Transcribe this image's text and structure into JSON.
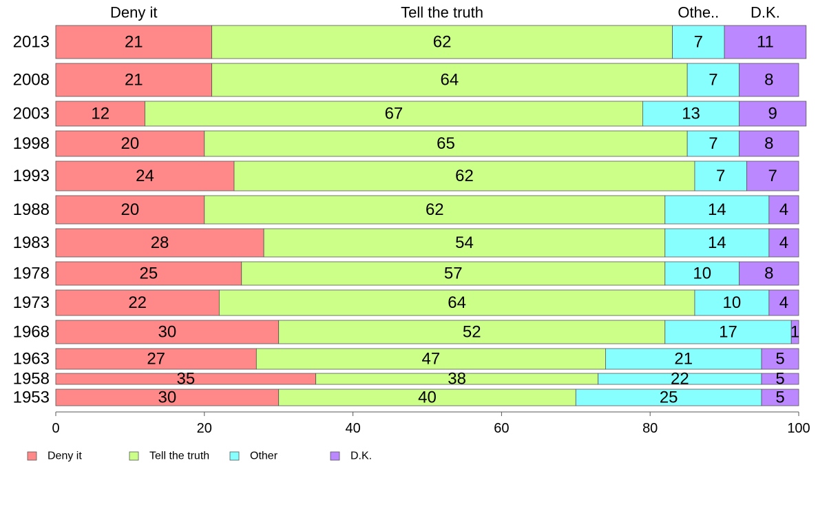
{
  "chart_data": {
    "type": "bar",
    "orientation": "horizontal",
    "stacked": true,
    "categories": [
      "2013",
      "2008",
      "2003",
      "1998",
      "1993",
      "1988",
      "1983",
      "1978",
      "1973",
      "1968",
      "1963",
      "1958",
      "1953"
    ],
    "series": [
      {
        "name": "Deny it",
        "color": "#ff8888",
        "values": [
          21,
          21,
          12,
          20,
          24,
          20,
          28,
          25,
          22,
          30,
          27,
          35,
          30
        ]
      },
      {
        "name": "Tell the truth",
        "color": "#ccff88",
        "values": [
          62,
          64,
          67,
          65,
          62,
          62,
          54,
          57,
          64,
          52,
          47,
          38,
          40
        ]
      },
      {
        "name": "Other",
        "color": "#88ffff",
        "values": [
          7,
          7,
          13,
          7,
          7,
          14,
          14,
          10,
          10,
          17,
          21,
          22,
          25
        ]
      },
      {
        "name": "D.K.",
        "color": "#bb88ff",
        "values": [
          11,
          8,
          9,
          8,
          7,
          4,
          4,
          8,
          4,
          1,
          5,
          5,
          5
        ]
      }
    ],
    "column_headers": [
      "Deny it",
      "Tell the truth",
      "Othe..",
      "D.K."
    ],
    "x_ticks": [
      "0",
      "20",
      "40",
      "60",
      "80",
      "100"
    ],
    "xlim": [
      0,
      100
    ],
    "grid": false,
    "legend_placement": "bottom-left"
  }
}
